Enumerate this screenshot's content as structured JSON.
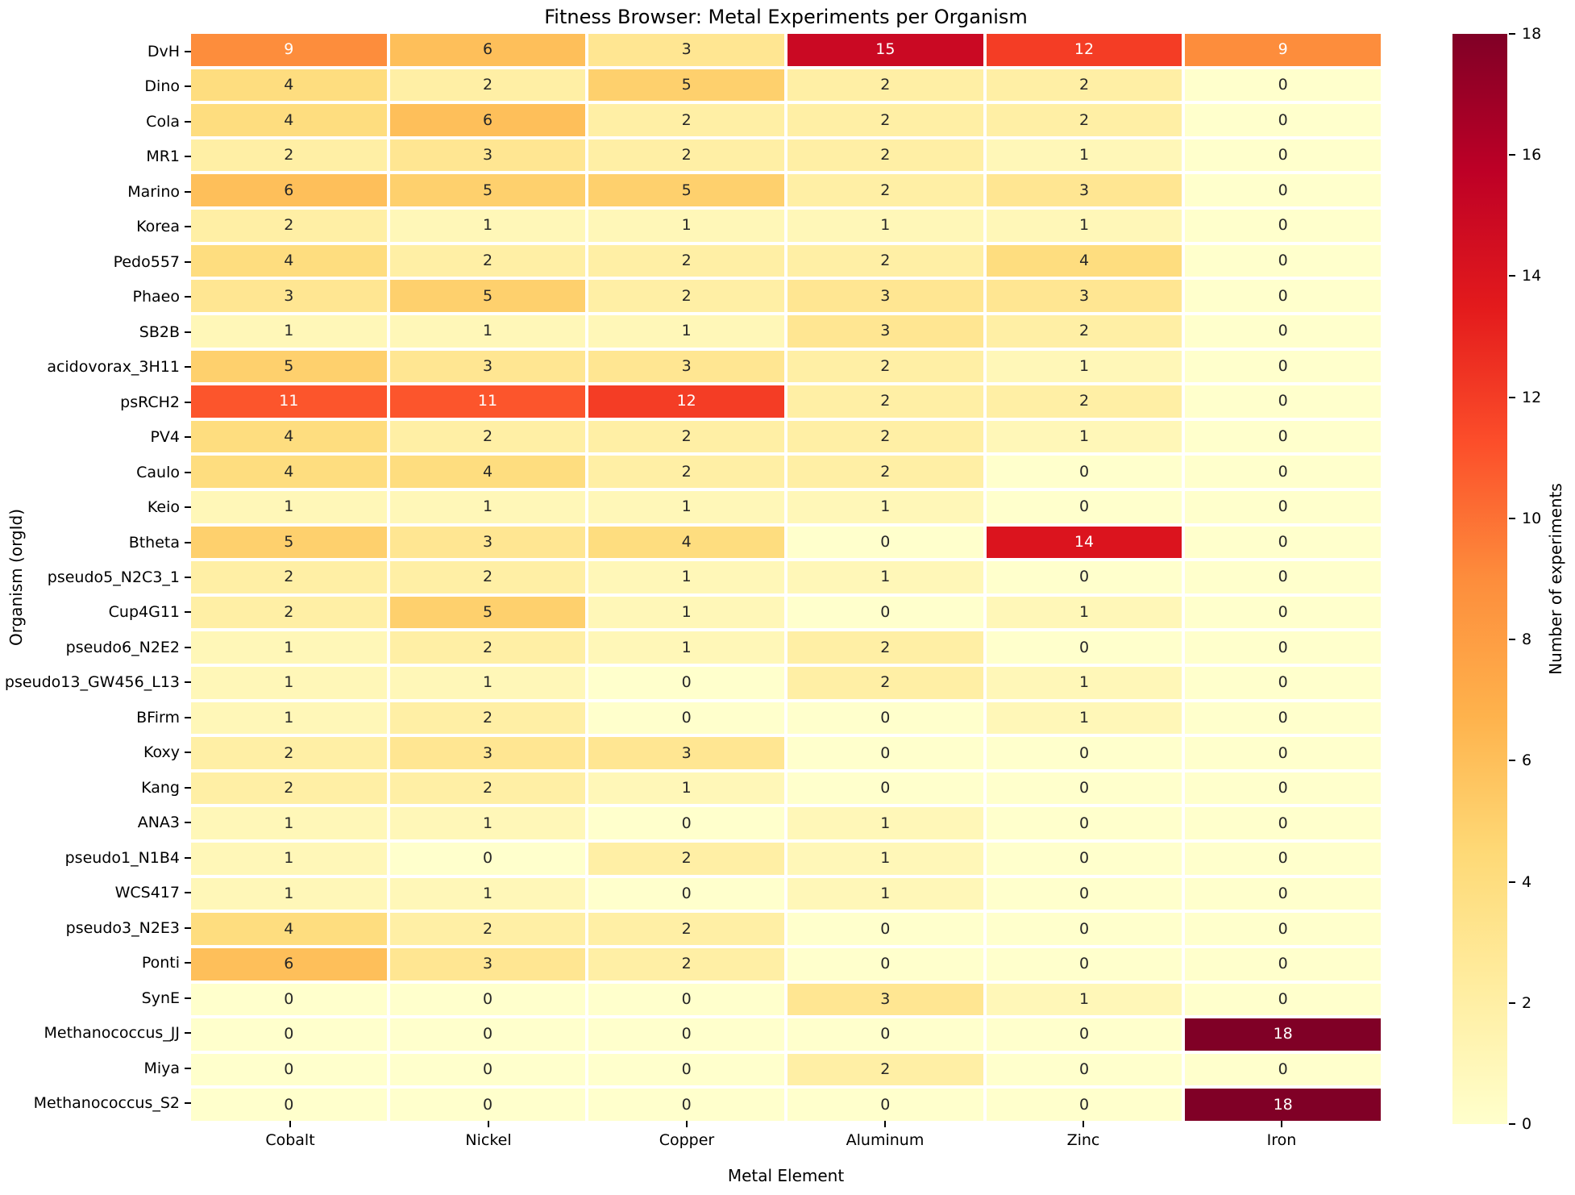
{
  "title": "Fitness Browser: Metal Experiments per Organism",
  "axes": {
    "xlabel": "Metal Element",
    "ylabel": "Organism (orgId)"
  },
  "colorbar": {
    "label": "Number of experiments",
    "ticks": [
      0,
      2,
      4,
      6,
      8,
      10,
      12,
      14,
      16,
      18
    ],
    "vmin": 0,
    "vmax": 18
  },
  "style": {
    "background": "#ffffff",
    "annot_dark_text": "#262626",
    "annot_light_text": "#ffffff",
    "gridline_color": "#ffffff"
  },
  "chart_data": {
    "type": "heatmap",
    "title": "Fitness Browser: Metal Experiments per Organism",
    "xlabel": "Metal Element",
    "ylabel": "Organism (orgId)",
    "legend_label": "Number of experiments",
    "vmin": 0,
    "vmax": 18,
    "annotated": true,
    "colormap": "YlOrRd",
    "colormap_stops": [
      "#ffffcc",
      "#ffeda0",
      "#fed976",
      "#feb24c",
      "#fd8d3c",
      "#fc4e2a",
      "#e31a1c",
      "#bd0026",
      "#800026"
    ],
    "columns": [
      "Cobalt",
      "Nickel",
      "Copper",
      "Aluminum",
      "Zinc",
      "Iron"
    ],
    "rows": [
      "DvH",
      "Dino",
      "Cola",
      "MR1",
      "Marino",
      "Korea",
      "Pedo557",
      "Phaeo",
      "SB2B",
      "acidovorax_3H11",
      "psRCH2",
      "PV4",
      "Caulo",
      "Keio",
      "Btheta",
      "pseudo5_N2C3_1",
      "Cup4G11",
      "pseudo6_N2E2",
      "pseudo13_GW456_L13",
      "BFirm",
      "Koxy",
      "Kang",
      "ANA3",
      "pseudo1_N1B4",
      "WCS417",
      "pseudo3_N2E3",
      "Ponti",
      "SynE",
      "Methanococcus_JJ",
      "Miya",
      "Methanococcus_S2"
    ],
    "values": [
      [
        9,
        6,
        3,
        15,
        12,
        9
      ],
      [
        4,
        2,
        5,
        2,
        2,
        0
      ],
      [
        4,
        6,
        2,
        2,
        2,
        0
      ],
      [
        2,
        3,
        2,
        2,
        1,
        0
      ],
      [
        6,
        5,
        5,
        2,
        3,
        0
      ],
      [
        2,
        1,
        1,
        1,
        1,
        0
      ],
      [
        4,
        2,
        2,
        2,
        4,
        0
      ],
      [
        3,
        5,
        2,
        3,
        3,
        0
      ],
      [
        1,
        1,
        1,
        3,
        2,
        0
      ],
      [
        5,
        3,
        3,
        2,
        1,
        0
      ],
      [
        11,
        11,
        12,
        2,
        2,
        0
      ],
      [
        4,
        2,
        2,
        2,
        1,
        0
      ],
      [
        4,
        4,
        2,
        2,
        0,
        0
      ],
      [
        1,
        1,
        1,
        1,
        0,
        0
      ],
      [
        5,
        3,
        4,
        0,
        14,
        0
      ],
      [
        2,
        2,
        1,
        1,
        0,
        0
      ],
      [
        2,
        5,
        1,
        0,
        1,
        0
      ],
      [
        1,
        2,
        1,
        2,
        0,
        0
      ],
      [
        1,
        1,
        0,
        2,
        1,
        0
      ],
      [
        1,
        2,
        0,
        0,
        1,
        0
      ],
      [
        2,
        3,
        3,
        0,
        0,
        0
      ],
      [
        2,
        2,
        1,
        0,
        0,
        0
      ],
      [
        1,
        1,
        0,
        1,
        0,
        0
      ],
      [
        1,
        0,
        2,
        1,
        0,
        0
      ],
      [
        1,
        1,
        0,
        1,
        0,
        0
      ],
      [
        4,
        2,
        2,
        0,
        0,
        0
      ],
      [
        6,
        3,
        2,
        0,
        0,
        0
      ],
      [
        0,
        0,
        0,
        3,
        1,
        0
      ],
      [
        0,
        0,
        0,
        0,
        0,
        18
      ],
      [
        0,
        0,
        0,
        2,
        0,
        0
      ],
      [
        0,
        0,
        0,
        0,
        0,
        18
      ]
    ]
  }
}
